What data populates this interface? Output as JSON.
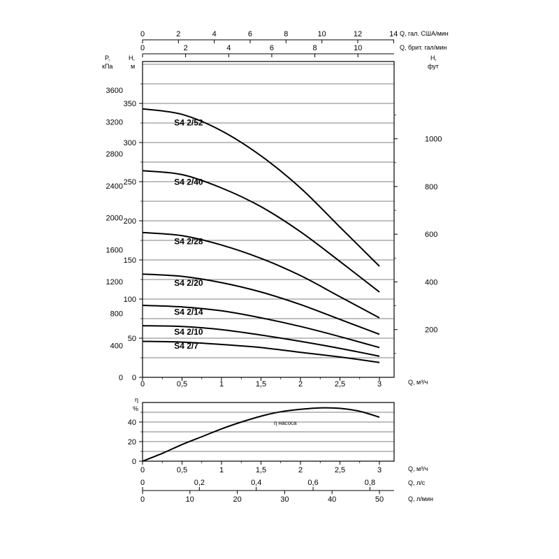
{
  "chart_data": [
    {
      "id": "head-chart",
      "type": "line",
      "title": "Pump head curves S4 2 series",
      "xlabel": "Q, м³/ч",
      "ylabel": "H, м",
      "xlim": [
        0,
        3.186
      ],
      "ylim": [
        0,
        402
      ],
      "grid": true,
      "grid_step_m": 25,
      "x": [
        0,
        0.5,
        1,
        1.5,
        2,
        2.5,
        3
      ],
      "series": [
        {
          "name": "S4 2/52",
          "values": [
            343,
            336,
            315,
            283,
            242,
            192,
            142
          ],
          "label_q": 0.4,
          "label_h": 322
        },
        {
          "name": "S4 2/40",
          "values": [
            264,
            259,
            242,
            218,
            186,
            148,
            109
          ],
          "label_q": 0.4,
          "label_h": 246
        },
        {
          "name": "S4 2/28",
          "values": [
            185,
            181,
            169,
            152,
            130,
            103,
            76
          ],
          "label_q": 0.4,
          "label_h": 170
        },
        {
          "name": "S4 2/20",
          "values": [
            132,
            129,
            121,
            109,
            93,
            74,
            55
          ],
          "label_q": 0.4,
          "label_h": 117
        },
        {
          "name": "S4 2/14",
          "values": [
            92,
            90,
            85,
            76,
            65,
            52,
            38
          ],
          "label_q": 0.4,
          "label_h": 80
        },
        {
          "name": "S4 2/10",
          "values": [
            66,
            65,
            61,
            54,
            46,
            37,
            27
          ],
          "label_q": 0.4,
          "label_h": 54.5
        },
        {
          "name": "S4 2/7",
          "values": [
            46,
            45,
            42,
            38,
            32,
            26,
            19
          ],
          "label_q": 0.4,
          "label_h": 36.5
        }
      ],
      "axes": {
        "left_pressure": {
          "title_line1": "P,",
          "title_line2": "кПа",
          "ticks": [
            0,
            400,
            800,
            1200,
            1600,
            2000,
            2400,
            2800,
            3200,
            3600
          ]
        },
        "left_head": {
          "title_line1": "H,",
          "title_line2": "м",
          "ticks": [
            0,
            50,
            100,
            150,
            200,
            250,
            300,
            350
          ]
        },
        "right_head_ft": {
          "title_line1": "H,",
          "title_line2": "фут",
          "ticks": [
            200,
            400,
            600,
            800,
            1000
          ]
        },
        "top_us_gpm": {
          "unit": "Q, гал. США/мин",
          "ticks": [
            0,
            2,
            4,
            6,
            8,
            10,
            12,
            14
          ]
        },
        "top_imp_gpm": {
          "unit": "Q, брит. гал/мин",
          "ticks": [
            0,
            2,
            4,
            6,
            8,
            10
          ]
        },
        "bottom_q": {
          "unit": "Q, м³/ч",
          "ticks": [
            0,
            0.5,
            1,
            1.5,
            2,
            2.5,
            3
          ],
          "tick_labels": [
            "0",
            "0,5",
            "1",
            "1,5",
            "2",
            "2,5",
            "3"
          ]
        }
      }
    },
    {
      "id": "efficiency-chart",
      "type": "line",
      "title": "Pump efficiency",
      "xlabel": "Q, м³/ч",
      "ylabel": "η %",
      "xlim": [
        0,
        3.186
      ],
      "ylim": [
        0,
        60
      ],
      "grid": true,
      "grid_step_pct": 10,
      "x": [
        0,
        0.25,
        0.5,
        0.75,
        1,
        1.25,
        1.5,
        1.75,
        2,
        2.25,
        2.5,
        2.75,
        3
      ],
      "values": [
        0,
        8,
        17,
        25,
        33,
        40,
        46,
        50.5,
        53,
        54.5,
        54,
        51,
        45
      ],
      "annotation": {
        "text": "η насоса",
        "q": 1.68,
        "eta": 36
      },
      "axes": {
        "left_eta": {
          "title_line1": "η",
          "title_line2": "%",
          "ticks": [
            0,
            20,
            40
          ]
        },
        "bottom_q": {
          "unit": "Q, м³/ч",
          "ticks": [
            0,
            0.5,
            1,
            1.5,
            2,
            2.5,
            3
          ],
          "tick_labels": [
            "0",
            "0,5",
            "1",
            "1,5",
            "2",
            "2,5",
            "3"
          ]
        },
        "bottom_ls": {
          "unit": "Q, л/с",
          "ticks": [
            0,
            0.2,
            0.4,
            0.6,
            0.8
          ],
          "tick_labels": [
            "0",
            "0,2",
            "0,4",
            "0,6",
            "0,8"
          ],
          "m3h_per_unit": 3.6
        },
        "bottom_lmin": {
          "unit": "Q, л/мин",
          "ticks": [
            0,
            10,
            20,
            30,
            40,
            50
          ],
          "tick_labels": [
            "0",
            "10",
            "20",
            "30",
            "40",
            "50"
          ],
          "m3h_per_unit": 0.06
        }
      }
    }
  ]
}
